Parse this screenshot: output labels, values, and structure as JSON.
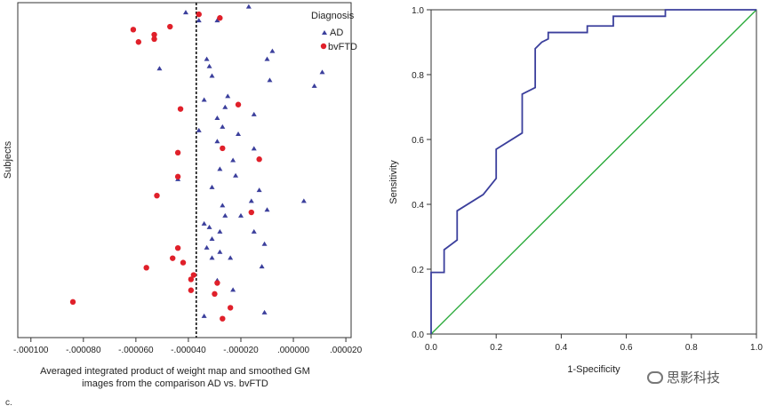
{
  "figure_label": "c.",
  "watermark": {
    "icon": "wechat-icon",
    "text": "思影科技"
  },
  "chart_data": [
    {
      "type": "scatter",
      "title": "",
      "xlabel": [
        "Averaged integrated product of weight map and smoothed GM",
        "images from the comparison AD vs. bvFTD"
      ],
      "ylabel": "Subjects",
      "xlim": [
        -0.000105,
        2.2e-05
      ],
      "ylim": [
        0,
        46
      ],
      "xticks": [
        -0.0001,
        -8e-05,
        -6e-05,
        -4e-05,
        -2e-05,
        0.0,
        2e-05
      ],
      "xtick_labels": [
        "-.000100",
        "-.000080",
        "-.000060",
        "-.000040",
        "-.000020",
        ".000000",
        ".000020"
      ],
      "threshold_x": -3.7e-05,
      "grid": false,
      "legend": {
        "title": "Diagnosis",
        "position": "top-right"
      },
      "colors": {
        "AD": "#3b3f9c",
        "bvFTD": "#e0202a"
      },
      "series": [
        {
          "name": "AD",
          "x": [
            -4.1e-05,
            -2.9e-05,
            -1.7e-05,
            -3.6e-05,
            -8e-06,
            -1e-05,
            -3.3e-05,
            -3.2e-05,
            -5.1e-05,
            1.1e-05,
            -3.1e-05,
            -9e-06,
            8e-06,
            -2.5e-05,
            -3.4e-05,
            -2.6e-05,
            -1.5e-05,
            -2.9e-05,
            -2.7e-05,
            -3.6e-05,
            -2.1e-05,
            -2.9e-05,
            -1.5e-05,
            -2.3e-05,
            -2.8e-05,
            -2.2e-05,
            -4.4e-05,
            -3.1e-05,
            -1.3e-05,
            4e-06,
            -1.6e-05,
            -2.7e-05,
            -1e-05,
            -2.6e-05,
            -2e-05,
            -3.4e-05,
            -3.2e-05,
            -2.8e-05,
            -1.5e-05,
            -3.1e-05,
            -1.1e-05,
            -3.3e-05,
            -2.8e-05,
            -2.4e-05,
            -3.1e-05,
            -1.2e-05,
            -2.9e-05,
            -2.3e-05,
            -1.1e-05,
            -3.4e-05
          ],
          "y": [
            44.7,
            43.6,
            45.5,
            43.6,
            39.4,
            38.3,
            38.3,
            37.3,
            37.0,
            36.5,
            36.0,
            35.4,
            34.6,
            33.2,
            32.7,
            31.7,
            30.7,
            30.2,
            29.0,
            28.5,
            28.0,
            27.0,
            26.0,
            24.4,
            23.2,
            22.3,
            21.8,
            20.7,
            20.3,
            18.8,
            18.8,
            18.2,
            17.6,
            16.8,
            16.8,
            15.7,
            15.2,
            14.6,
            14.6,
            13.6,
            12.9,
            12.4,
            11.8,
            11.0,
            11.0,
            9.8,
            7.9,
            6.6,
            3.5,
            3.0
          ]
        },
        {
          "name": "bvFTD",
          "x": [
            -3.6e-05,
            -4.7e-05,
            -6.1e-05,
            -5.3e-05,
            -5.3e-05,
            -5.9e-05,
            -2.8e-05,
            -4.3e-05,
            -2.1e-05,
            -4.4e-05,
            -1.3e-05,
            -2.7e-05,
            -4.4e-05,
            -5.2e-05,
            -1.6e-05,
            -4.4e-05,
            -4.6e-05,
            -4.2e-05,
            -5.6e-05,
            -3.8e-05,
            -3.9e-05,
            -2.9e-05,
            -3.9e-05,
            -3e-05,
            -8.4e-05,
            -2.4e-05,
            -2.7e-05
          ],
          "y": [
            44.4,
            42.7,
            42.3,
            41.6,
            41.0,
            40.6,
            43.9,
            31.4,
            32.0,
            25.4,
            24.5,
            26.0,
            22.1,
            19.5,
            17.2,
            12.3,
            10.9,
            10.3,
            9.6,
            8.6,
            8.0,
            7.5,
            6.5,
            6.0,
            4.9,
            4.1,
            2.6
          ]
        }
      ]
    },
    {
      "type": "line",
      "title": "",
      "xlabel": "1-Specificity",
      "ylabel": "Sensitivity",
      "xlim": [
        0,
        1
      ],
      "ylim": [
        0,
        1
      ],
      "xticks": [
        0.0,
        0.2,
        0.4,
        0.6,
        0.8,
        1.0
      ],
      "yticks": [
        0.0,
        0.2,
        0.4,
        0.6,
        0.8,
        1.0
      ],
      "xtick_labels": [
        "0.0",
        "0.2",
        "0.4",
        "0.6",
        "0.8",
        "1.0"
      ],
      "ytick_labels": [
        "0.0",
        "0.2",
        "0.4",
        "0.6",
        "0.8",
        "1.0"
      ],
      "grid": false,
      "colors": {
        "roc": "#3b3f9c",
        "reference": "#2aaa3a"
      },
      "series": [
        {
          "name": "",
          "x": [
            0.0,
            0.0,
            0.04,
            0.04,
            0.08,
            0.08,
            0.16,
            0.2,
            0.2,
            0.28,
            0.28,
            0.32,
            0.32,
            0.34,
            0.36,
            0.36,
            0.48,
            0.48,
            0.56,
            0.56,
            0.72,
            0.72,
            1.0
          ],
          "y": [
            0.0,
            0.19,
            0.19,
            0.26,
            0.29,
            0.38,
            0.43,
            0.48,
            0.57,
            0.62,
            0.74,
            0.76,
            0.88,
            0.9,
            0.91,
            0.93,
            0.93,
            0.95,
            0.95,
            0.98,
            0.98,
            1.0,
            1.0
          ]
        },
        {
          "name": "",
          "x": [
            0.0,
            1.0
          ],
          "y": [
            0.0,
            1.0
          ]
        }
      ]
    }
  ]
}
